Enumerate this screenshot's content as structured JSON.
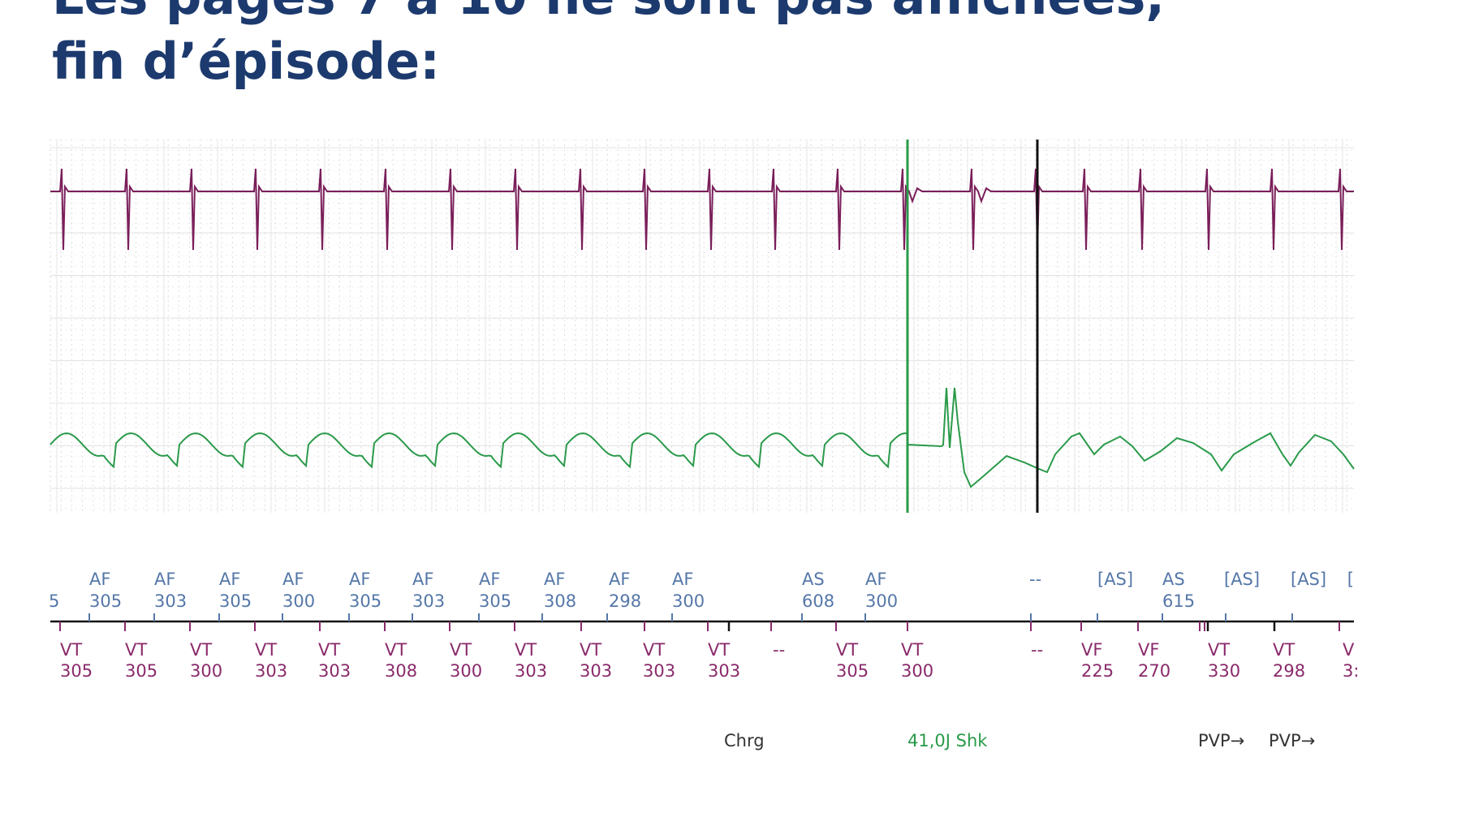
{
  "title": {
    "line1": "Les pages 7 à 10 ne sont pas affichées,",
    "line2": "fin d’épisode:"
  },
  "colors": {
    "title": "#1c3a6e",
    "atrial_egm": "#7a1f5a",
    "shock_egm": "#2a9a4a",
    "atrial_marker": "#5577a8",
    "ventricular_marker": "#8a2a6b",
    "shock_line": "#2a9a4a",
    "episode_end_line": "#111111"
  },
  "atrial_markers": [
    {
      "l1": "",
      "l2": "5"
    },
    {
      "l1": "AF",
      "l2": "305"
    },
    {
      "l1": "AF",
      "l2": "303"
    },
    {
      "l1": "AF",
      "l2": "305"
    },
    {
      "l1": "AF",
      "l2": "300"
    },
    {
      "l1": "AF",
      "l2": "305"
    },
    {
      "l1": "AF",
      "l2": "303"
    },
    {
      "l1": "AF",
      "l2": "305"
    },
    {
      "l1": "AF",
      "l2": "308"
    },
    {
      "l1": "AF",
      "l2": "298"
    },
    {
      "l1": "AF",
      "l2": "300"
    },
    {
      "l1": "AS",
      "l2": "608"
    },
    {
      "l1": "AF",
      "l2": "300"
    },
    {
      "l1": "--",
      "l2": ""
    },
    {
      "l1": "[AS]",
      "l2": ""
    },
    {
      "l1": "AS",
      "l2": "615"
    },
    {
      "l1": "[AS]",
      "l2": ""
    },
    {
      "l1": "[AS]",
      "l2": ""
    },
    {
      "l1": "[",
      "l2": ""
    }
  ],
  "ventricular_markers": [
    {
      "l1": "VT",
      "l2": "305"
    },
    {
      "l1": "VT",
      "l2": "305"
    },
    {
      "l1": "VT",
      "l2": "300"
    },
    {
      "l1": "VT",
      "l2": "303"
    },
    {
      "l1": "VT",
      "l2": "303"
    },
    {
      "l1": "VT",
      "l2": "308"
    },
    {
      "l1": "VT",
      "l2": "300"
    },
    {
      "l1": "VT",
      "l2": "303"
    },
    {
      "l1": "VT",
      "l2": "303"
    },
    {
      "l1": "VT",
      "l2": "303"
    },
    {
      "l1": "VT",
      "l2": "303"
    },
    {
      "l1": "--",
      "l2": ""
    },
    {
      "l1": "VT",
      "l2": "305"
    },
    {
      "l1": "VT",
      "l2": "300"
    },
    {
      "l1": "--",
      "l2": ""
    },
    {
      "l1": "VF",
      "l2": "225"
    },
    {
      "l1": "VF",
      "l2": "270"
    },
    {
      "l1": "VT",
      "l2": "330"
    },
    {
      "l1": "VT",
      "l2": "298"
    },
    {
      "l1": "V",
      "l2": "3:"
    }
  ],
  "annotations": {
    "charge": "Chrg",
    "shock": "41,0J Shk",
    "pvp1": "PVP→",
    "pvp2": "PVP→"
  }
}
